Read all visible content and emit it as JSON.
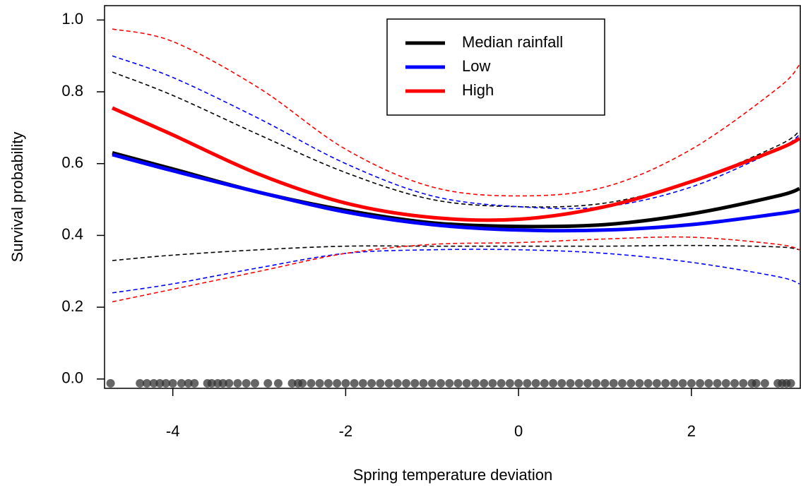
{
  "chart_data": {
    "type": "line",
    "xlabel": "Spring temperature deviation",
    "ylabel": "Survival probability",
    "x": [
      -4.7,
      -4,
      -3,
      -2,
      -1,
      0,
      1,
      2,
      3,
      3.25
    ],
    "series": [
      {
        "name": "Median rainfall",
        "color": "#000000",
        "values": [
          0.63,
          0.585,
          0.52,
          0.47,
          0.435,
          0.425,
          0.43,
          0.46,
          0.51,
          0.53
        ],
        "ci_lower": [
          0.33,
          0.345,
          0.36,
          0.37,
          0.37,
          0.37,
          0.37,
          0.372,
          0.368,
          0.36
        ],
        "ci_upper": [
          0.855,
          0.79,
          0.68,
          0.575,
          0.5,
          0.48,
          0.49,
          0.55,
          0.65,
          0.69
        ]
      },
      {
        "name": "Low",
        "color": "#0000ff",
        "values": [
          0.625,
          0.58,
          0.52,
          0.465,
          0.43,
          0.415,
          0.415,
          0.43,
          0.46,
          0.47
        ],
        "ci_lower": [
          0.24,
          0.265,
          0.31,
          0.35,
          0.36,
          0.36,
          0.35,
          0.325,
          0.285,
          0.265
        ],
        "ci_upper": [
          0.9,
          0.84,
          0.725,
          0.6,
          0.51,
          0.48,
          0.48,
          0.535,
          0.64,
          0.68
        ]
      },
      {
        "name": "High",
        "color": "#ff0000",
        "values": [
          0.755,
          0.68,
          0.57,
          0.49,
          0.45,
          0.445,
          0.48,
          0.55,
          0.64,
          0.67
        ],
        "ci_lower": [
          0.215,
          0.25,
          0.3,
          0.35,
          0.375,
          0.38,
          0.39,
          0.395,
          0.375,
          0.36
        ],
        "ci_upper": [
          0.975,
          0.94,
          0.81,
          0.64,
          0.535,
          0.51,
          0.535,
          0.64,
          0.81,
          0.875
        ]
      }
    ],
    "rug": {
      "color": "#333333",
      "y": -0.012,
      "x": [
        -4.72,
        -4.38,
        -4.3,
        -4.22,
        -4.15,
        -4.08,
        -4.0,
        -3.9,
        -3.82,
        -3.75,
        -3.6,
        -3.55,
        -3.48,
        -3.42,
        -3.35,
        -3.25,
        -3.15,
        -3.05,
        -2.9,
        -2.78,
        -2.62,
        -2.55,
        -2.5,
        -2.4,
        -2.3,
        -2.2,
        -2.1,
        -2.0,
        -1.9,
        -1.8,
        -1.7,
        -1.6,
        -1.5,
        -1.4,
        -1.3,
        -1.2,
        -1.1,
        -1.0,
        -0.9,
        -0.8,
        -0.7,
        -0.6,
        -0.5,
        -0.4,
        -0.3,
        -0.2,
        -0.1,
        0,
        0.1,
        0.2,
        0.3,
        0.4,
        0.5,
        0.6,
        0.7,
        0.8,
        0.9,
        1.0,
        1.1,
        1.2,
        1.3,
        1.4,
        1.5,
        1.6,
        1.7,
        1.8,
        1.9,
        2.0,
        2.1,
        2.2,
        2.3,
        2.4,
        2.5,
        2.6,
        2.7,
        2.75,
        2.85,
        3.0,
        3.05,
        3.1,
        3.15
      ]
    },
    "xlim": [
      -4.79,
      3.26
    ],
    "ylim": [
      -0.026,
      1.04
    ],
    "xticks": [
      -4,
      -2,
      0,
      2
    ],
    "yticks": [
      {
        "value": 0,
        "label": "0.0"
      },
      0.2,
      0.4,
      0.6,
      0.8,
      {
        "value": 1,
        "label": "1.0"
      }
    ],
    "legend": "top"
  }
}
